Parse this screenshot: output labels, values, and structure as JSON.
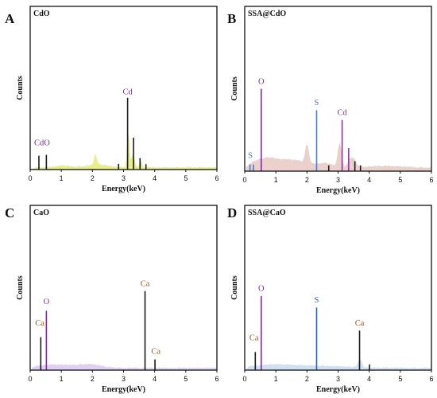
{
  "chart_data": [
    {
      "panel": "A",
      "title": "CdO",
      "type": "area",
      "xlabel": "Energy(keV)",
      "ylabel": "Counts",
      "xlim": [
        0,
        6
      ],
      "xticks": [
        0,
        1,
        2,
        3,
        4,
        5,
        6
      ],
      "fill_color": "#e6ec7a",
      "baseline": 0.012,
      "bumps": [
        {
          "x": 1.05,
          "w": 0.35,
          "h": 0.012
        },
        {
          "x": 2.1,
          "w": 0.06,
          "h": 0.06
        },
        {
          "x": 2.2,
          "w": 0.5,
          "h": 0.018
        },
        {
          "x": 3.15,
          "w": 0.05,
          "h": 0.2
        },
        {
          "x": 3.3,
          "w": 0.07,
          "h": 0.08
        },
        {
          "x": 3.55,
          "w": 0.05,
          "h": 0.04
        }
      ],
      "lines": [
        {
          "x": 0.28,
          "h": 0.085,
          "color": "#1a1a1a"
        },
        {
          "x": 0.52,
          "h": 0.09,
          "color": "#1a1a1a"
        },
        {
          "x": 2.84,
          "h": 0.035,
          "color": "#1a1a1a"
        },
        {
          "x": 3.13,
          "h": 0.44,
          "color": "#1a1a1a"
        },
        {
          "x": 3.32,
          "h": 0.195,
          "color": "#1a1a1a"
        },
        {
          "x": 3.53,
          "h": 0.07,
          "color": "#1a1a1a"
        },
        {
          "x": 3.72,
          "h": 0.033,
          "color": "#1a1a1a"
        }
      ],
      "labels": [
        {
          "text": "CdO",
          "x": 0.38,
          "h": 0.15,
          "color": "#7b2d9c"
        },
        {
          "text": "Cd",
          "x": 3.13,
          "h": 0.46,
          "color": "#7b2d9c"
        }
      ]
    },
    {
      "panel": "B",
      "title": "SSA@CdO",
      "type": "area",
      "xlabel": "Energy(keV)",
      "ylabel": "Counts",
      "xlim": [
        0,
        6
      ],
      "xticks": [
        0,
        1,
        2,
        3,
        4,
        5,
        6
      ],
      "fill_color": "#e8c9c2",
      "baseline": 0.02,
      "bumps": [
        {
          "x": 0.7,
          "w": 0.6,
          "h": 0.06
        },
        {
          "x": 1.6,
          "w": 0.5,
          "h": 0.04
        },
        {
          "x": 2.0,
          "w": 0.08,
          "h": 0.11
        },
        {
          "x": 2.55,
          "w": 0.5,
          "h": 0.025
        },
        {
          "x": 3.05,
          "w": 0.08,
          "h": 0.14
        },
        {
          "x": 3.45,
          "w": 0.15,
          "h": 0.06
        },
        {
          "x": 4.5,
          "w": 0.8,
          "h": 0.01
        }
      ],
      "lines": [
        {
          "x": 0.17,
          "h": 0.04,
          "color": "#4f7fc6"
        },
        {
          "x": 0.28,
          "h": 0.04,
          "color": "#4f7fc6"
        },
        {
          "x": 0.53,
          "h": 0.5,
          "color": "#7b2d9c"
        },
        {
          "x": 2.31,
          "h": 0.37,
          "color": "#4f7fc6"
        },
        {
          "x": 2.7,
          "h": 0.035,
          "color": "#1a1a1a"
        },
        {
          "x": 3.13,
          "h": 0.31,
          "color": "#8b3aa0"
        },
        {
          "x": 3.34,
          "h": 0.14,
          "color": "#8b3aa0"
        },
        {
          "x": 3.54,
          "h": 0.06,
          "color": "#1a1a1a"
        },
        {
          "x": 3.72,
          "h": 0.035,
          "color": "#1a1a1a"
        }
      ],
      "labels": [
        {
          "text": "S",
          "x": 0.18,
          "h": 0.08,
          "color": "#4f7fc6"
        },
        {
          "text": "O",
          "x": 0.53,
          "h": 0.53,
          "color": "#7b2d9c"
        },
        {
          "text": "S",
          "x": 2.31,
          "h": 0.4,
          "color": "#4f7fc6"
        },
        {
          "text": "Cd",
          "x": 3.13,
          "h": 0.34,
          "color": "#7b2d9c"
        }
      ]
    },
    {
      "panel": "C",
      "title": "CaO",
      "type": "area",
      "xlabel": "Energy(keV)",
      "ylabel": "Counts",
      "xlim": [
        0,
        6
      ],
      "xticks": [
        0,
        1,
        2,
        3,
        4,
        5,
        6
      ],
      "fill_color": "#d9c7f2",
      "baseline": 0.012,
      "bumps": [
        {
          "x": 0.9,
          "w": 1.0,
          "h": 0.02
        },
        {
          "x": 2.0,
          "w": 0.5,
          "h": 0.015
        }
      ],
      "lines": [
        {
          "x": 0.34,
          "h": 0.2,
          "color": "#1a1a1a"
        },
        {
          "x": 0.52,
          "h": 0.36,
          "color": "#7b2d9c"
        },
        {
          "x": 3.69,
          "h": 0.48,
          "color": "#1a1a1a"
        },
        {
          "x": 4.01,
          "h": 0.065,
          "color": "#1a1a1a"
        }
      ],
      "labels": [
        {
          "text": "Ca",
          "x": 0.31,
          "h": 0.27,
          "color": "#9a5a2a"
        },
        {
          "text": "O",
          "x": 0.52,
          "h": 0.4,
          "color": "#7b2d9c"
        },
        {
          "text": "Ca",
          "x": 3.69,
          "h": 0.51,
          "color": "#9a5a2a"
        },
        {
          "text": "Ca",
          "x": 4.04,
          "h": 0.1,
          "color": "#9a5a2a"
        }
      ]
    },
    {
      "panel": "D",
      "title": "SSA@CaO",
      "type": "area",
      "xlabel": "Energy(keV)",
      "ylabel": "Counts",
      "xlim": [
        0,
        6
      ],
      "xticks": [
        0,
        1,
        2,
        3,
        4,
        5,
        6
      ],
      "fill_color": "#c7dbf0",
      "baseline": 0.012,
      "bumps": [
        {
          "x": 0.9,
          "w": 0.9,
          "h": 0.02
        },
        {
          "x": 2.5,
          "w": 1.2,
          "h": 0.012
        },
        {
          "x": 3.7,
          "w": 0.08,
          "h": 0.05
        }
      ],
      "lines": [
        {
          "x": 0.34,
          "h": 0.11,
          "color": "#1a1a1a"
        },
        {
          "x": 0.53,
          "h": 0.45,
          "color": "#7b2d9c"
        },
        {
          "x": 2.31,
          "h": 0.38,
          "color": "#2f5fb0"
        },
        {
          "x": 3.69,
          "h": 0.24,
          "color": "#1a1a1a"
        },
        {
          "x": 4.01,
          "h": 0.035,
          "color": "#1a1a1a"
        }
      ],
      "labels": [
        {
          "text": "Ca",
          "x": 0.3,
          "h": 0.18,
          "color": "#9a5a2a"
        },
        {
          "text": "O",
          "x": 0.53,
          "h": 0.48,
          "color": "#7b2d9c"
        },
        {
          "text": "S",
          "x": 2.31,
          "h": 0.41,
          "color": "#2f5fb0"
        },
        {
          "text": "Ca",
          "x": 3.69,
          "h": 0.27,
          "color": "#9a5a2a"
        }
      ]
    }
  ]
}
